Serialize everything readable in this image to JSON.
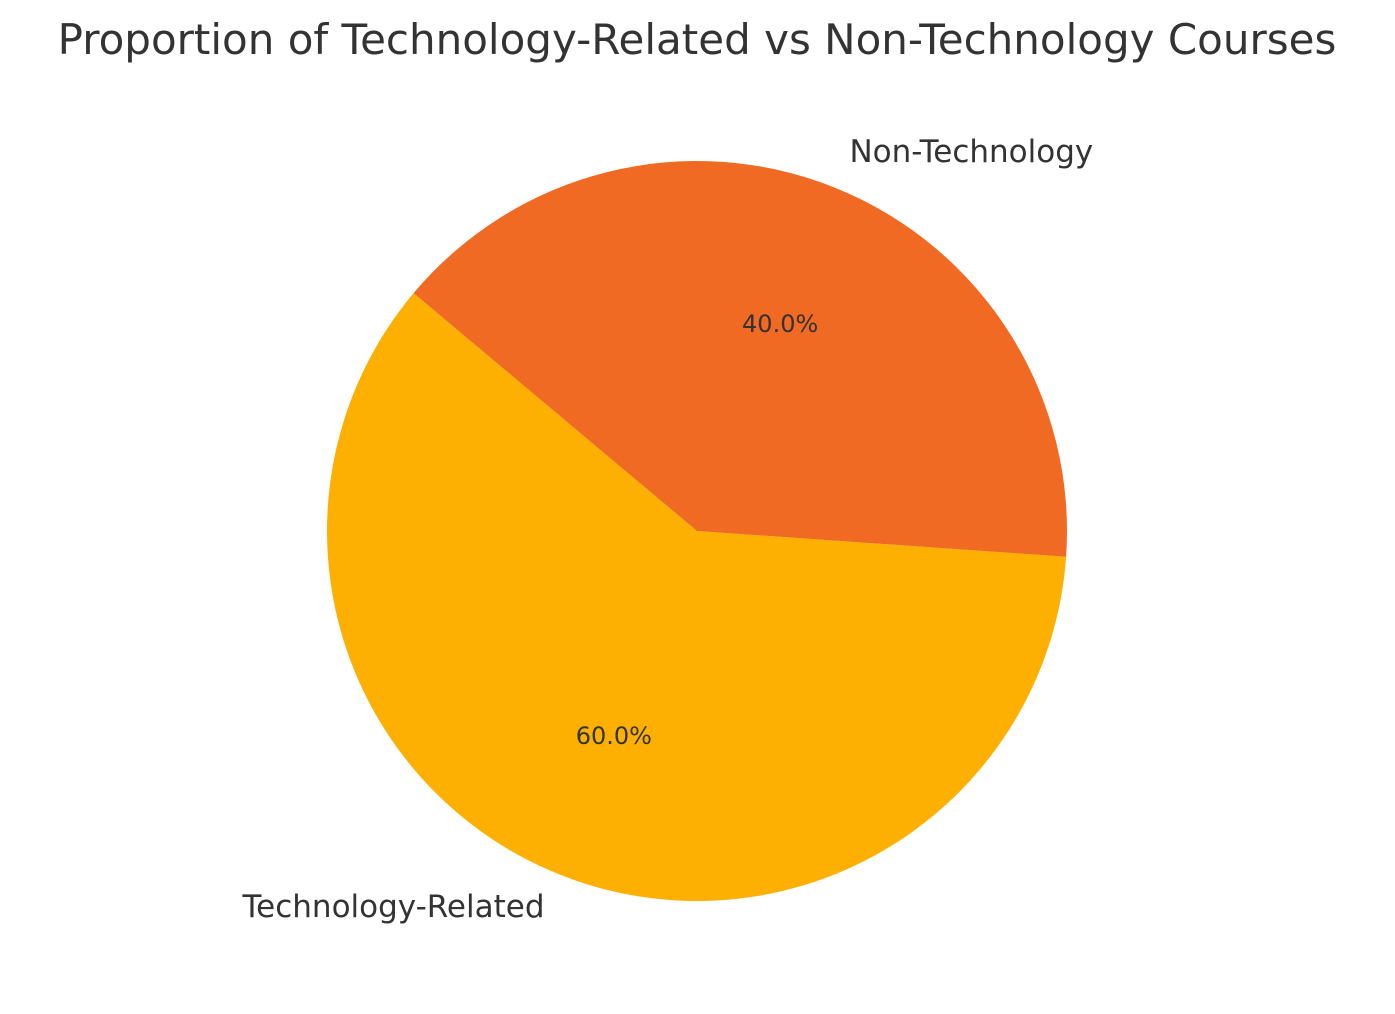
{
  "chart_data": {
    "type": "pie",
    "title": "Proportion of Technology-Related vs Non-Technology Courses",
    "categories": [
      "Technology-Related",
      "Non-Technology"
    ],
    "values": [
      60.0,
      40.0
    ],
    "percent_labels": [
      "60.0%",
      "40.0%"
    ],
    "colors": [
      "#FDB002",
      "#F16A23"
    ],
    "start_angle_deg": 140,
    "direction": "counterclockwise",
    "legend": "none"
  }
}
